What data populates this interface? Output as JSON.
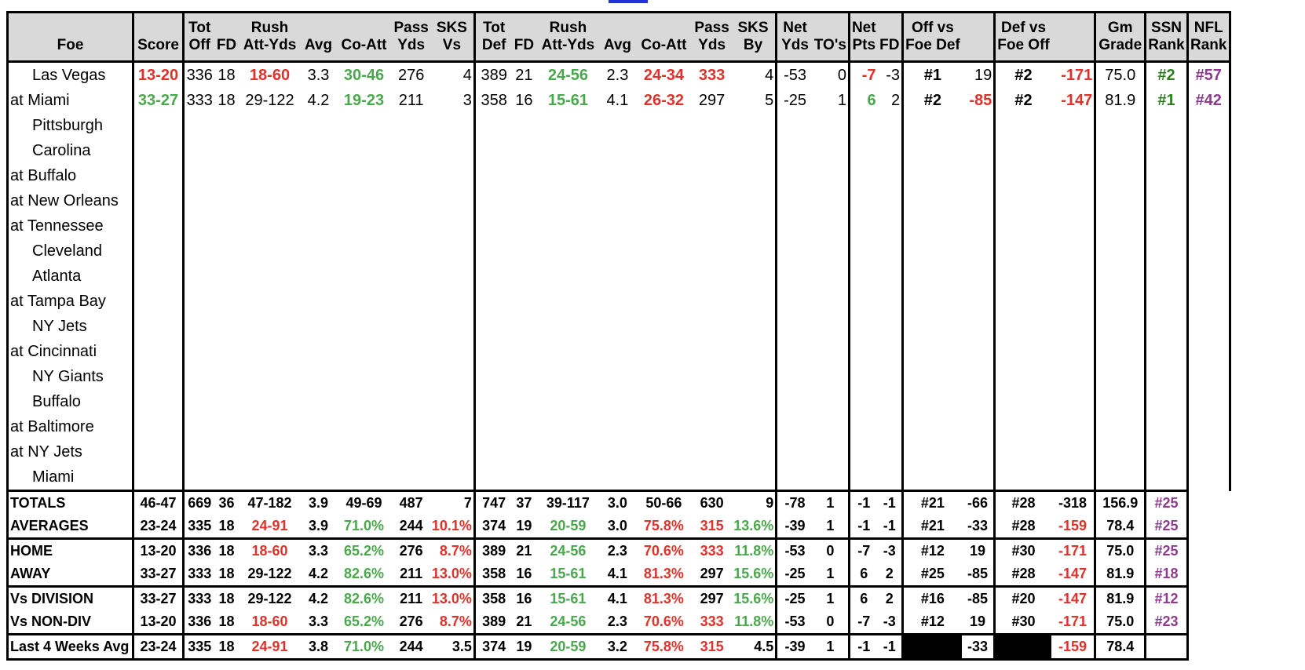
{
  "headers": {
    "top": [
      "",
      "",
      "Tot",
      "",
      "Rush",
      "",
      "",
      "Pass",
      "SKS",
      "Tot",
      "",
      "Rush",
      "",
      "",
      "Pass",
      "SKS",
      "Net",
      "",
      "Net",
      "",
      "Off vs",
      "",
      "Def vs",
      "",
      "Gm",
      "SSN",
      "NFL"
    ],
    "bottom": [
      "Foe",
      "Score",
      "Off",
      "FD",
      "Att-Yds",
      "Avg",
      "Co-Att",
      "Yds",
      "Vs",
      "Def",
      "FD",
      "Att-Yds",
      "Avg",
      "Co-Att",
      "Yds",
      "By",
      "Yds",
      "TO's",
      "Pts",
      "FD",
      "Foe Def",
      "",
      "Foe Off",
      "",
      "Grade",
      "Rank",
      "Rank"
    ]
  },
  "games": [
    {
      "foe": "Las Vegas",
      "home": true,
      "score": "13-20",
      "tot_off": "336",
      "off_fd": "18",
      "rush_off": "18-60",
      "rush_off_avg": "3.3",
      "pass_co_att": "30-46",
      "pass_yds": "276",
      "sks_vs": "4",
      "tot_def": "389",
      "def_fd": "21",
      "rush_def": "24-56",
      "rush_def_avg": "2.3",
      "def_co_att": "24-34",
      "def_pass_yds": "333",
      "sks_by": "4",
      "net_yds": "-53",
      "net_to": "0",
      "net_pts": "-7",
      "net_fd": "-3",
      "off_rank": "#1",
      "off_val": "19",
      "def_rank": "#2",
      "def_val": "-171",
      "grade": "75.0",
      "ssn_rank": "#2",
      "nfl_rank": "#57"
    },
    {
      "foe": "at Miami",
      "home": false,
      "score": "33-27",
      "tot_off": "333",
      "off_fd": "18",
      "rush_off": "29-122",
      "rush_off_avg": "4.2",
      "pass_co_att": "19-23",
      "pass_yds": "211",
      "sks_vs": "3",
      "tot_def": "358",
      "def_fd": "16",
      "rush_def": "15-61",
      "rush_def_avg": "4.1",
      "def_co_att": "26-32",
      "def_pass_yds": "297",
      "sks_by": "5",
      "net_yds": "-25",
      "net_to": "1",
      "net_pts": "6",
      "net_fd": "2",
      "off_rank": "#2",
      "off_val": "-85",
      "def_rank": "#2",
      "def_val": "-147",
      "grade": "81.9",
      "ssn_rank": "#1",
      "nfl_rank": "#42"
    },
    {
      "foe": "Pittsburgh",
      "home": true
    },
    {
      "foe": "Carolina",
      "home": true
    },
    {
      "foe": "at Buffalo",
      "home": false
    },
    {
      "foe": "at New Orleans",
      "home": false
    },
    {
      "foe": "at Tennessee",
      "home": false
    },
    {
      "foe": "Cleveland",
      "home": true
    },
    {
      "foe": "Atlanta",
      "home": true
    },
    {
      "foe": "at Tampa Bay",
      "home": false
    },
    {
      "foe": "NY Jets",
      "home": true
    },
    {
      "foe": "at Cincinnati",
      "home": false
    },
    {
      "foe": "NY Giants",
      "home": true
    },
    {
      "foe": "Buffalo",
      "home": true
    },
    {
      "foe": "at Baltimore",
      "home": false
    },
    {
      "foe": "at NY Jets",
      "home": false
    },
    {
      "foe": "Miami",
      "home": true
    }
  ],
  "summary": [
    {
      "label": "TOTALS",
      "v": [
        "46-47",
        "669",
        "36",
        "47-182",
        "3.9",
        "49-69",
        "487",
        "7",
        "747",
        "37",
        "39-117",
        "3.0",
        "50-66",
        "630",
        "9",
        "-78",
        "1",
        "-1",
        "-1",
        "#21",
        "-66",
        "#28",
        "-318",
        "156.9",
        "#25"
      ]
    },
    {
      "label": "AVERAGES",
      "v": [
        "23-24",
        "335",
        "18",
        "24-91",
        "3.9",
        "71.0%",
        "244",
        "10.1%",
        "374",
        "19",
        "20-59",
        "3.0",
        "75.8%",
        "315",
        "13.6%",
        "-39",
        "1",
        "-1",
        "-1",
        "#21",
        "-33",
        "#28",
        "-159",
        "78.4",
        "#25"
      ]
    },
    {
      "label": "HOME",
      "v": [
        "13-20",
        "336",
        "18",
        "18-60",
        "3.3",
        "65.2%",
        "276",
        "8.7%",
        "389",
        "21",
        "24-56",
        "2.3",
        "70.6%",
        "333",
        "11.8%",
        "-53",
        "0",
        "-7",
        "-3",
        "#12",
        "19",
        "#30",
        "-171",
        "75.0",
        "#25"
      ]
    },
    {
      "label": "AWAY",
      "v": [
        "33-27",
        "333",
        "18",
        "29-122",
        "4.2",
        "82.6%",
        "211",
        "13.0%",
        "358",
        "16",
        "15-61",
        "4.1",
        "81.3%",
        "297",
        "15.6%",
        "-25",
        "1",
        "6",
        "2",
        "#25",
        "-85",
        "#28",
        "-147",
        "81.9",
        "#18"
      ]
    },
    {
      "label": "Vs DIVISION",
      "v": [
        "33-27",
        "333",
        "18",
        "29-122",
        "4.2",
        "82.6%",
        "211",
        "13.0%",
        "358",
        "16",
        "15-61",
        "4.1",
        "81.3%",
        "297",
        "15.6%",
        "-25",
        "1",
        "6",
        "2",
        "#16",
        "-85",
        "#20",
        "-147",
        "81.9",
        "#12"
      ]
    },
    {
      "label": "Vs NON-DIV",
      "v": [
        "13-20",
        "336",
        "18",
        "18-60",
        "3.3",
        "65.2%",
        "276",
        "8.7%",
        "389",
        "21",
        "24-56",
        "2.3",
        "70.6%",
        "333",
        "11.8%",
        "-53",
        "0",
        "-7",
        "-3",
        "#12",
        "19",
        "#30",
        "-171",
        "75.0",
        "#23"
      ]
    },
    {
      "label": "Last 4 Weeks Avg",
      "v": [
        "23-24",
        "335",
        "18",
        "24-91",
        "3.8",
        "71.0%",
        "244",
        "3.5",
        "374",
        "19",
        "20-59",
        "3.2",
        "75.8%",
        "315",
        "4.5",
        "-39",
        "1",
        "-1",
        "-1",
        "",
        "-33",
        "",
        "-159",
        "78.4",
        ""
      ]
    }
  ],
  "colors": {
    "red": "#e0312b",
    "green": "#4aa84c",
    "dark_green": "#2e7d1f",
    "purple": "#8e3b8e",
    "header_bg": "#d9d9d9"
  }
}
